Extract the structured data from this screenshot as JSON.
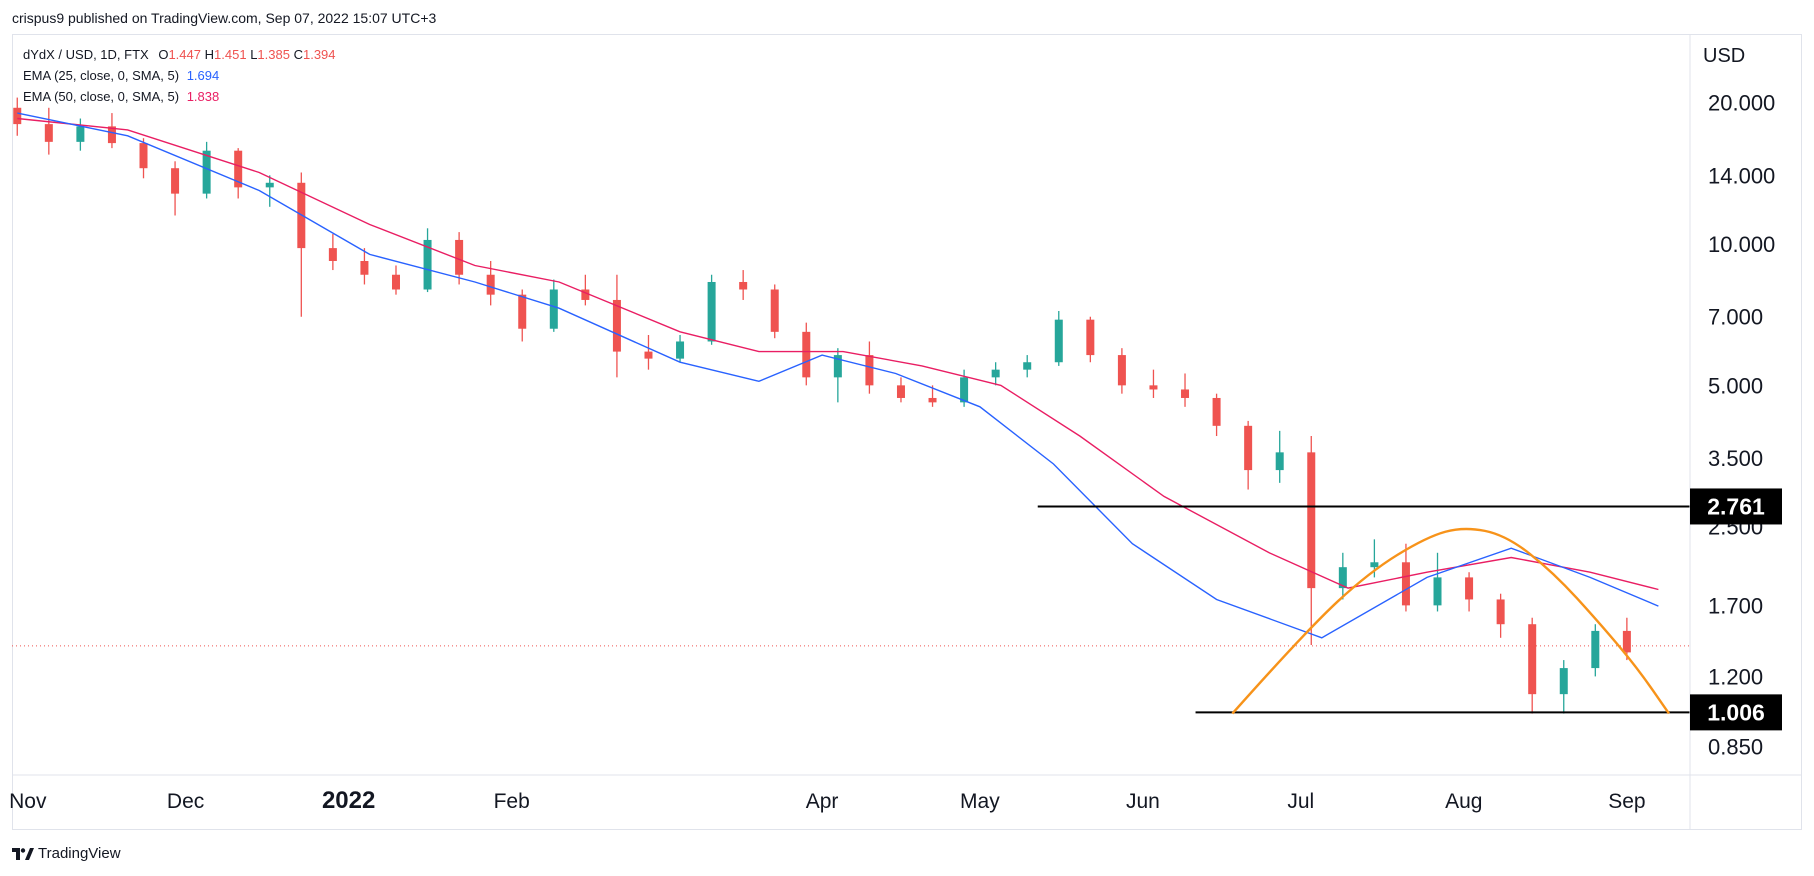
{
  "header": {
    "attribution": "crispus9 published on TradingView.com, Sep 07, 2022 15:07 UTC+3"
  },
  "legend": {
    "symbol": "dYdX / USD, 1D, FTX",
    "ohlc": [
      {
        "label": "O",
        "value": "1.447"
      },
      {
        "label": "H",
        "value": "1.451"
      },
      {
        "label": "L",
        "value": "1.385"
      },
      {
        "label": "C",
        "value": "1.394"
      }
    ],
    "ema25": {
      "label": "EMA (25, close, 0, SMA, 5)",
      "value": "1.694",
      "color": "#2962ff"
    },
    "ema50": {
      "label": "EMA (50, close, 0, SMA, 5)",
      "value": "1.838",
      "color": "#e91e63"
    }
  },
  "footer": {
    "brand": "TradingView"
  },
  "colors": {
    "up": "#26a69a",
    "down": "#ef5350",
    "arc": "#f7931a",
    "level": "#000000",
    "axis_text": "#131722",
    "price_line": "#ef5350"
  },
  "chart_data": {
    "type": "candlestick",
    "title": "dYdX / USD, 1D, FTX",
    "y_axis_label": "USD",
    "y_scale": "log",
    "y_range": [
      0.74,
      28.0
    ],
    "y_ticks": [
      "20.000",
      "14.000",
      "10.000",
      "7.000",
      "5.000",
      "3.500",
      "2.500",
      "1.700",
      "1.200",
      "0.850"
    ],
    "x_ticks": [
      "Nov",
      "Dec",
      "2022",
      "Feb",
      "Apr",
      "May",
      "Jun",
      "Jul",
      "Aug",
      "Sep"
    ],
    "x_range": [
      "2021-10-29",
      "2022-09-13"
    ],
    "last_close": 1.394,
    "horizontal_levels": [
      {
        "label": "2.761",
        "value": 2.761,
        "from": "2022-05-12",
        "to": "2022-09-13"
      },
      {
        "label": "1.006",
        "value": 1.006,
        "from": "2022-06-11",
        "to": "2022-09-13"
      }
    ],
    "arc_points": [
      {
        "date": "2022-06-18",
        "price": 1.0
      },
      {
        "date": "2022-07-02",
        "price": 1.5
      },
      {
        "date": "2022-07-14",
        "price": 2.0
      },
      {
        "date": "2022-07-25",
        "price": 2.38
      },
      {
        "date": "2022-08-01",
        "price": 2.5
      },
      {
        "date": "2022-08-09",
        "price": 2.4
      },
      {
        "date": "2022-08-18",
        "price": 2.0
      },
      {
        "date": "2022-08-27",
        "price": 1.55
      },
      {
        "date": "2022-09-03",
        "price": 1.25
      },
      {
        "date": "2022-09-09",
        "price": 1.0
      }
    ],
    "ema25_path": [
      {
        "date": "2021-10-30",
        "price": 19.0
      },
      {
        "date": "2021-11-20",
        "price": 17.0
      },
      {
        "date": "2021-12-15",
        "price": 13.0
      },
      {
        "date": "2022-01-05",
        "price": 9.5
      },
      {
        "date": "2022-01-25",
        "price": 8.3
      },
      {
        "date": "2022-02-10",
        "price": 7.3
      },
      {
        "date": "2022-03-05",
        "price": 5.6
      },
      {
        "date": "2022-03-20",
        "price": 5.1
      },
      {
        "date": "2022-04-01",
        "price": 5.8
      },
      {
        "date": "2022-04-15",
        "price": 5.3
      },
      {
        "date": "2022-05-01",
        "price": 4.5
      },
      {
        "date": "2022-05-15",
        "price": 3.4
      },
      {
        "date": "2022-05-30",
        "price": 2.3
      },
      {
        "date": "2022-06-15",
        "price": 1.75
      },
      {
        "date": "2022-07-05",
        "price": 1.45
      },
      {
        "date": "2022-07-25",
        "price": 1.95
      },
      {
        "date": "2022-08-10",
        "price": 2.25
      },
      {
        "date": "2022-08-25",
        "price": 1.95
      },
      {
        "date": "2022-09-07",
        "price": 1.694
      }
    ],
    "ema50_path": [
      {
        "date": "2021-10-30",
        "price": 18.5
      },
      {
        "date": "2021-11-20",
        "price": 17.5
      },
      {
        "date": "2021-12-15",
        "price": 14.2
      },
      {
        "date": "2022-01-05",
        "price": 11.0
      },
      {
        "date": "2022-01-25",
        "price": 9.0
      },
      {
        "date": "2022-02-10",
        "price": 8.3
      },
      {
        "date": "2022-03-05",
        "price": 6.5
      },
      {
        "date": "2022-03-20",
        "price": 5.9
      },
      {
        "date": "2022-04-05",
        "price": 5.9
      },
      {
        "date": "2022-04-20",
        "price": 5.5
      },
      {
        "date": "2022-05-05",
        "price": 5.0
      },
      {
        "date": "2022-05-20",
        "price": 3.9
      },
      {
        "date": "2022-06-05",
        "price": 2.9
      },
      {
        "date": "2022-06-25",
        "price": 2.2
      },
      {
        "date": "2022-07-10",
        "price": 1.85
      },
      {
        "date": "2022-07-25",
        "price": 2.0
      },
      {
        "date": "2022-08-10",
        "price": 2.15
      },
      {
        "date": "2022-08-25",
        "price": 2.0
      },
      {
        "date": "2022-09-07",
        "price": 1.838
      }
    ],
    "candles": [
      {
        "date": "2021-10-30",
        "o": 19.5,
        "h": 20.5,
        "l": 17.0,
        "c": 18.0
      },
      {
        "date": "2021-11-05",
        "o": 18.0,
        "h": 19.5,
        "l": 15.5,
        "c": 16.5
      },
      {
        "date": "2021-11-11",
        "o": 16.5,
        "h": 18.5,
        "l": 15.8,
        "c": 17.8
      },
      {
        "date": "2021-11-17",
        "o": 17.8,
        "h": 19.0,
        "l": 16.0,
        "c": 16.4
      },
      {
        "date": "2021-11-23",
        "o": 16.4,
        "h": 16.8,
        "l": 13.8,
        "c": 14.5
      },
      {
        "date": "2021-11-29",
        "o": 14.5,
        "h": 15.0,
        "l": 11.5,
        "c": 12.8
      },
      {
        "date": "2021-12-05",
        "o": 12.8,
        "h": 16.5,
        "l": 12.5,
        "c": 15.8
      },
      {
        "date": "2021-12-11",
        "o": 15.8,
        "h": 16.0,
        "l": 12.5,
        "c": 13.2
      },
      {
        "date": "2021-12-17",
        "o": 13.2,
        "h": 14.0,
        "l": 12.0,
        "c": 13.5
      },
      {
        "date": "2021-12-23",
        "o": 13.5,
        "h": 14.2,
        "l": 7.0,
        "c": 9.8
      },
      {
        "date": "2021-12-29",
        "o": 9.8,
        "h": 10.5,
        "l": 8.8,
        "c": 9.2
      },
      {
        "date": "2022-01-04",
        "o": 9.2,
        "h": 9.8,
        "l": 8.2,
        "c": 8.6
      },
      {
        "date": "2022-01-10",
        "o": 8.6,
        "h": 9.0,
        "l": 7.8,
        "c": 8.0
      },
      {
        "date": "2022-01-16",
        "o": 8.0,
        "h": 10.8,
        "l": 7.9,
        "c": 10.2
      },
      {
        "date": "2022-01-22",
        "o": 10.2,
        "h": 10.6,
        "l": 8.2,
        "c": 8.6
      },
      {
        "date": "2022-01-28",
        "o": 8.6,
        "h": 9.2,
        "l": 7.4,
        "c": 7.8
      },
      {
        "date": "2022-02-03",
        "o": 7.8,
        "h": 8.0,
        "l": 6.2,
        "c": 6.6
      },
      {
        "date": "2022-02-09",
        "o": 6.6,
        "h": 8.4,
        "l": 6.5,
        "c": 8.0
      },
      {
        "date": "2022-02-15",
        "o": 8.0,
        "h": 8.6,
        "l": 7.4,
        "c": 7.6
      },
      {
        "date": "2022-02-21",
        "o": 7.6,
        "h": 8.6,
        "l": 5.2,
        "c": 5.9
      },
      {
        "date": "2022-02-27",
        "o": 5.9,
        "h": 6.4,
        "l": 5.4,
        "c": 5.7
      },
      {
        "date": "2022-03-05",
        "o": 5.7,
        "h": 6.4,
        "l": 5.6,
        "c": 6.2
      },
      {
        "date": "2022-03-11",
        "o": 6.2,
        "h": 8.6,
        "l": 6.1,
        "c": 8.3
      },
      {
        "date": "2022-03-17",
        "o": 8.3,
        "h": 8.8,
        "l": 7.6,
        "c": 8.0
      },
      {
        "date": "2022-03-23",
        "o": 8.0,
        "h": 8.2,
        "l": 6.3,
        "c": 6.5
      },
      {
        "date": "2022-03-29",
        "o": 6.5,
        "h": 6.8,
        "l": 5.0,
        "c": 5.2
      },
      {
        "date": "2022-04-04",
        "o": 5.2,
        "h": 6.0,
        "l": 4.6,
        "c": 5.8
      },
      {
        "date": "2022-04-10",
        "o": 5.8,
        "h": 6.2,
        "l": 4.8,
        "c": 5.0
      },
      {
        "date": "2022-04-16",
        "o": 5.0,
        "h": 5.2,
        "l": 4.6,
        "c": 4.7
      },
      {
        "date": "2022-04-22",
        "o": 4.7,
        "h": 5.0,
        "l": 4.5,
        "c": 4.6
      },
      {
        "date": "2022-04-28",
        "o": 4.6,
        "h": 5.4,
        "l": 4.5,
        "c": 5.2
      },
      {
        "date": "2022-05-04",
        "o": 5.2,
        "h": 5.6,
        "l": 5.0,
        "c": 5.4
      },
      {
        "date": "2022-05-10",
        "o": 5.4,
        "h": 5.8,
        "l": 5.2,
        "c": 5.6
      },
      {
        "date": "2022-05-16",
        "o": 5.6,
        "h": 7.2,
        "l": 5.5,
        "c": 6.9
      },
      {
        "date": "2022-05-22",
        "o": 6.9,
        "h": 7.0,
        "l": 5.6,
        "c": 5.8
      },
      {
        "date": "2022-05-28",
        "o": 5.8,
        "h": 6.0,
        "l": 4.8,
        "c": 5.0
      },
      {
        "date": "2022-06-03",
        "o": 5.0,
        "h": 5.4,
        "l": 4.7,
        "c": 4.9
      },
      {
        "date": "2022-06-09",
        "o": 4.9,
        "h": 5.3,
        "l": 4.5,
        "c": 4.7
      },
      {
        "date": "2022-06-15",
        "o": 4.7,
        "h": 4.8,
        "l": 3.9,
        "c": 4.1
      },
      {
        "date": "2022-06-21",
        "o": 4.1,
        "h": 4.2,
        "l": 3.0,
        "c": 3.3
      },
      {
        "date": "2022-06-27",
        "o": 3.3,
        "h": 4.0,
        "l": 3.1,
        "c": 3.6
      },
      {
        "date": "2022-07-03",
        "o": 3.6,
        "h": 3.9,
        "l": 1.4,
        "c": 1.85
      },
      {
        "date": "2022-07-09",
        "o": 1.85,
        "h": 2.2,
        "l": 1.75,
        "c": 2.05
      },
      {
        "date": "2022-07-15",
        "o": 2.05,
        "h": 2.35,
        "l": 1.95,
        "c": 2.1
      },
      {
        "date": "2022-07-21",
        "o": 2.1,
        "h": 2.3,
        "l": 1.65,
        "c": 1.7
      },
      {
        "date": "2022-07-27",
        "o": 1.7,
        "h": 2.2,
        "l": 1.65,
        "c": 1.95
      },
      {
        "date": "2022-08-02",
        "o": 1.95,
        "h": 2.0,
        "l": 1.65,
        "c": 1.75
      },
      {
        "date": "2022-08-08",
        "o": 1.75,
        "h": 1.8,
        "l": 1.45,
        "c": 1.55
      },
      {
        "date": "2022-08-14",
        "o": 1.55,
        "h": 1.6,
        "l": 1.0,
        "c": 1.1
      },
      {
        "date": "2022-08-20",
        "o": 1.1,
        "h": 1.3,
        "l": 1.0,
        "c": 1.25
      },
      {
        "date": "2022-08-26",
        "o": 1.25,
        "h": 1.55,
        "l": 1.2,
        "c": 1.5
      },
      {
        "date": "2022-09-01",
        "o": 1.5,
        "h": 1.6,
        "l": 1.3,
        "c": 1.35
      }
    ]
  }
}
